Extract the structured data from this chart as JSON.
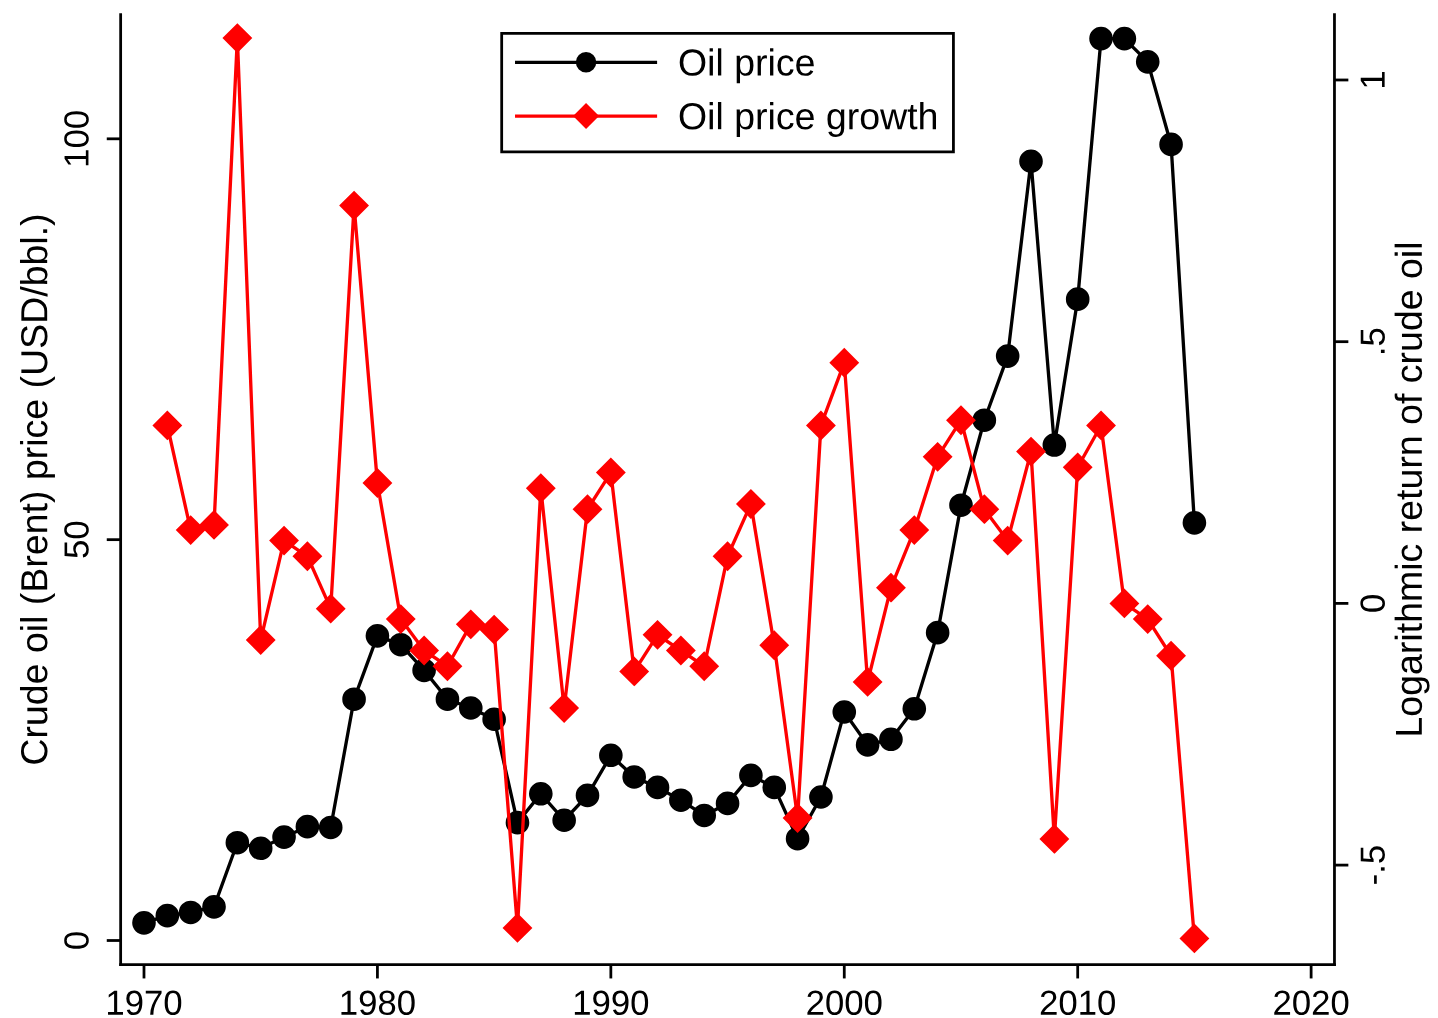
{
  "chart_data": {
    "type": "line",
    "ylabel": "Crude oil (Brent) price (USD/bbl.)",
    "y2label": "Logarithmic return of crude oil",
    "x": [
      1970,
      1971,
      1972,
      1973,
      1974,
      1975,
      1976,
      1977,
      1978,
      1979,
      1980,
      1981,
      1982,
      1983,
      1984,
      1985,
      1986,
      1987,
      1988,
      1989,
      1990,
      1991,
      1992,
      1993,
      1994,
      1995,
      1996,
      1997,
      1998,
      1999,
      2000,
      2001,
      2002,
      2003,
      2004,
      2005,
      2006,
      2007,
      2008,
      2009,
      2010,
      2011,
      2012,
      2013,
      2014,
      2015
    ],
    "series": [
      {
        "name": "Oil price",
        "color": "#000000",
        "marker": "circle",
        "values": [
          2.2,
          3.1,
          3.5,
          4.2,
          12.2,
          11.5,
          12.9,
          14.2,
          14.1,
          30.1,
          38.0,
          36.9,
          33.7,
          30.1,
          29.0,
          27.6,
          14.7,
          18.3,
          15.0,
          18.1,
          23.1,
          20.4,
          19.1,
          17.5,
          15.6,
          17.1,
          20.6,
          19.1,
          12.7,
          17.9,
          28.5,
          24.4,
          25.1,
          28.9,
          38.4,
          54.3,
          64.9,
          72.9,
          97.2,
          61.8,
          80.0,
          112.5,
          112.5,
          109.6,
          99.3,
          52.1
        ]
      },
      {
        "name": "Oil price growth",
        "color": "#ff0000",
        "marker": "diamond",
        "axis": "y2",
        "values": [
          null,
          0.34,
          0.14,
          0.15,
          1.08,
          -0.07,
          0.12,
          0.09,
          -0.01,
          0.76,
          0.23,
          -0.03,
          -0.09,
          -0.12,
          -0.04,
          -0.05,
          -0.62,
          0.22,
          -0.2,
          0.18,
          0.25,
          -0.13,
          -0.06,
          -0.09,
          -0.12,
          0.09,
          0.19,
          -0.08,
          -0.41,
          0.34,
          0.46,
          -0.15,
          0.03,
          0.14,
          0.28,
          0.35,
          0.18,
          0.12,
          0.29,
          -0.45,
          0.26,
          0.34,
          0.0,
          -0.03,
          -0.1,
          -0.64
        ]
      }
    ],
    "xlim": [
      1969,
      2021
    ],
    "xticks": [
      1970,
      1980,
      1990,
      2000,
      2010,
      2020
    ],
    "ylim": [
      -3,
      115.5
    ],
    "yticks": [
      0,
      50,
      100
    ],
    "y2lim": [
      -0.69,
      1.125
    ],
    "y2ticks": [
      {
        "value": -0.5,
        "label": "-.5"
      },
      0,
      {
        "value": 0.5,
        "label": ".5"
      },
      1
    ],
    "legend": "top",
    "line_style": "solid"
  }
}
